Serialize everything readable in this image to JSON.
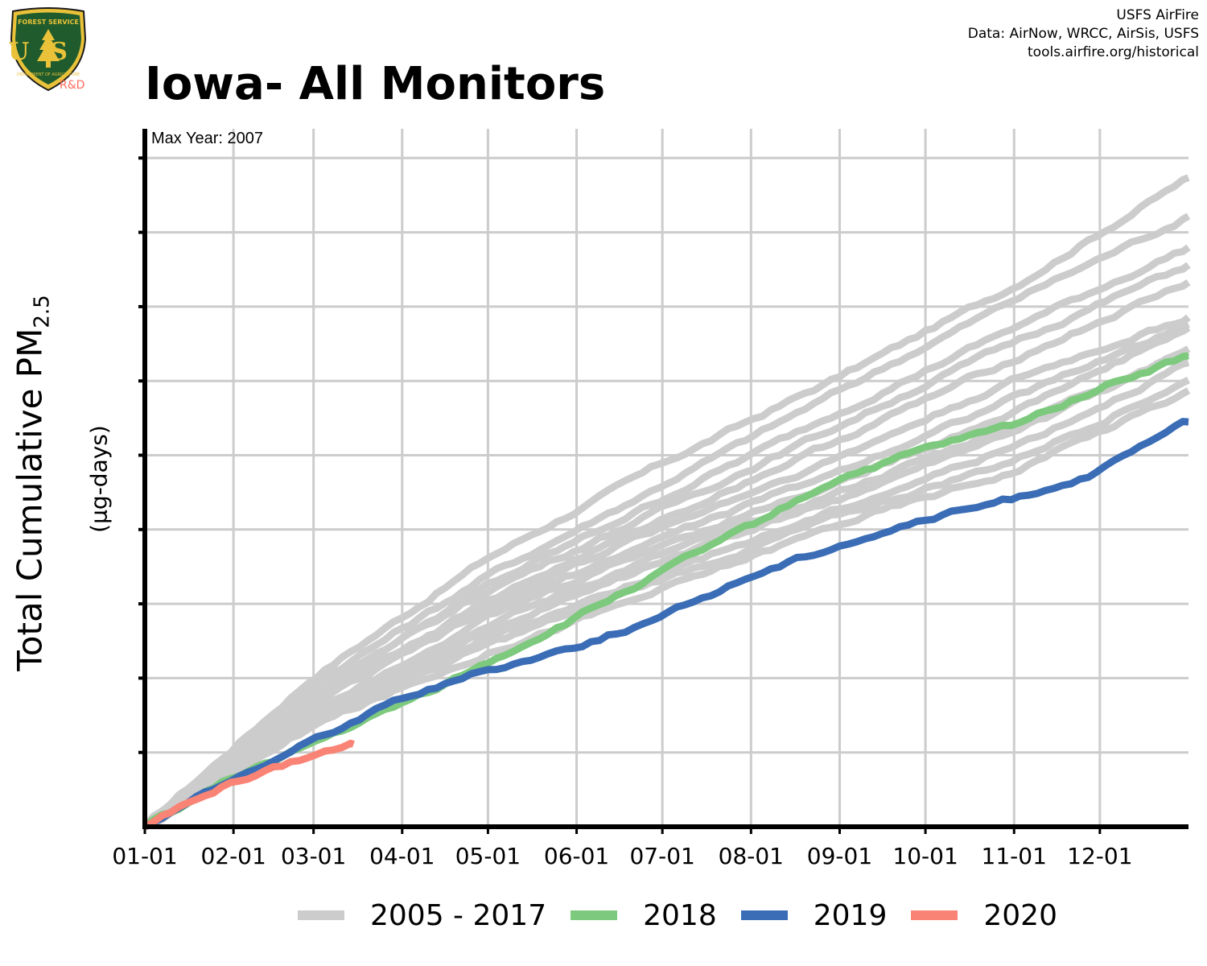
{
  "header": {
    "title": "Iowa- All Monitors",
    "credit_lines": [
      "USFS AirFire",
      "Data: AirNow, WRCC, AirSis, USFS",
      "tools.airfire.org/historical"
    ]
  },
  "logo": {
    "top_text": "FOREST SERVICE",
    "letters": "US",
    "bottom_text": "DEPARTMENT OF AGRICULTURE",
    "rd_text": "R&D",
    "colors": {
      "shield": "#1f5b2c",
      "gold": "#e9c23a",
      "rd": "#ff6b5b"
    }
  },
  "chart_data": {
    "type": "line",
    "ylabel_main": "Total Cumulative PM",
    "ylabel_sub": "2.5",
    "ylabel_unit": "(µg-days)",
    "annotation": "Max Year: 2007",
    "x_ticks": [
      "01-01",
      "02-01",
      "03-01",
      "04-01",
      "05-01",
      "06-01",
      "07-01",
      "08-01",
      "09-01",
      "10-01",
      "11-01",
      "12-01"
    ],
    "x_tick_days": [
      1,
      32,
      60,
      91,
      121,
      152,
      182,
      213,
      244,
      274,
      305,
      335
    ],
    "xlim_days": [
      1,
      366
    ],
    "y_tick_labels_shown": false,
    "ylim_fraction": [
      0,
      1
    ],
    "grid": true,
    "legend": {
      "placement": "bottom"
    },
    "colors": {
      "2005 - 2017": "#cccccc",
      "2018": "#7dc97d",
      "2019": "#3a6db5",
      "2020": "#f98475"
    },
    "note": "Y axis has no tick labels; series values are fractions of the axis range.",
    "series": [
      {
        "name": "2005 - 2017",
        "group": "historical",
        "x": [
          1,
          60,
          121,
          182,
          244,
          305,
          366
        ],
        "values": [
          0,
          0.215,
          0.385,
          0.52,
          0.645,
          0.775,
          0.93
        ]
      },
      {
        "name": "2005 - 2017",
        "group": "historical",
        "x": [
          1,
          60,
          121,
          182,
          244,
          305,
          366
        ],
        "values": [
          0,
          0.205,
          0.36,
          0.49,
          0.625,
          0.755,
          0.875
        ]
      },
      {
        "name": "2005 - 2017",
        "group": "historical",
        "x": [
          1,
          60,
          121,
          182,
          244,
          305,
          366
        ],
        "values": [
          0,
          0.195,
          0.345,
          0.47,
          0.595,
          0.715,
          0.83
        ]
      },
      {
        "name": "2005 - 2017",
        "group": "historical",
        "x": [
          1,
          60,
          121,
          182,
          244,
          305,
          366
        ],
        "values": [
          0,
          0.19,
          0.34,
          0.455,
          0.575,
          0.695,
          0.805
        ]
      },
      {
        "name": "2005 - 2017",
        "group": "historical",
        "x": [
          1,
          60,
          121,
          182,
          244,
          305,
          366
        ],
        "values": [
          0,
          0.185,
          0.325,
          0.44,
          0.555,
          0.67,
          0.78
        ]
      },
      {
        "name": "2005 - 2017",
        "group": "historical",
        "x": [
          1,
          60,
          121,
          182,
          244,
          305,
          366
        ],
        "values": [
          0,
          0.18,
          0.32,
          0.43,
          0.53,
          0.64,
          0.73
        ]
      },
      {
        "name": "2005 - 2017",
        "group": "historical",
        "x": [
          1,
          60,
          121,
          182,
          244,
          305,
          366
        ],
        "values": [
          0,
          0.175,
          0.31,
          0.415,
          0.51,
          0.615,
          0.72
        ]
      },
      {
        "name": "2005 - 2017",
        "group": "historical",
        "x": [
          1,
          60,
          121,
          182,
          244,
          305,
          366
        ],
        "values": [
          0,
          0.17,
          0.3,
          0.405,
          0.495,
          0.595,
          0.715
        ]
      },
      {
        "name": "2005 - 2017",
        "group": "historical",
        "x": [
          1,
          60,
          121,
          182,
          244,
          305,
          366
        ],
        "values": [
          0,
          0.165,
          0.29,
          0.39,
          0.48,
          0.575,
          0.685
        ]
      },
      {
        "name": "2005 - 2017",
        "group": "historical",
        "x": [
          1,
          60,
          121,
          182,
          244,
          305,
          366
        ],
        "values": [
          0,
          0.16,
          0.28,
          0.38,
          0.47,
          0.565,
          0.68
        ]
      },
      {
        "name": "2005 - 2017",
        "group": "historical",
        "x": [
          1,
          60,
          121,
          182,
          244,
          305,
          366
        ],
        "values": [
          0,
          0.155,
          0.27,
          0.365,
          0.455,
          0.545,
          0.665
        ]
      },
      {
        "name": "2005 - 2017",
        "group": "historical",
        "x": [
          1,
          60,
          121,
          182,
          244,
          305,
          366
        ],
        "values": [
          0,
          0.15,
          0.26,
          0.355,
          0.445,
          0.525,
          0.64
        ]
      },
      {
        "name": "2005 - 2017",
        "group": "historical",
        "x": [
          1,
          60,
          121,
          182,
          244,
          305,
          366
        ],
        "values": [
          0,
          0.145,
          0.25,
          0.34,
          0.435,
          0.51,
          0.625
        ]
      },
      {
        "name": "2018",
        "group": "highlight",
        "x": [
          1,
          32,
          60,
          91,
          121,
          152,
          182,
          213,
          244,
          274,
          305,
          335,
          366
        ],
        "values": [
          0,
          0.07,
          0.12,
          0.175,
          0.235,
          0.3,
          0.365,
          0.43,
          0.5,
          0.54,
          0.575,
          0.63,
          0.675
        ]
      },
      {
        "name": "2019",
        "group": "highlight",
        "x": [
          1,
          32,
          60,
          91,
          121,
          152,
          182,
          213,
          244,
          274,
          305,
          335,
          366
        ],
        "values": [
          0,
          0.068,
          0.125,
          0.185,
          0.225,
          0.26,
          0.3,
          0.36,
          0.405,
          0.44,
          0.47,
          0.51,
          0.58
        ]
      },
      {
        "name": "2020",
        "group": "highlight",
        "x": [
          1,
          32,
          60,
          74
        ],
        "values": [
          0,
          0.065,
          0.1,
          0.118
        ]
      }
    ]
  },
  "legend_items": [
    {
      "label": "2005 - 2017",
      "color": "#cccccc"
    },
    {
      "label": "2018",
      "color": "#7dc97d"
    },
    {
      "label": "2019",
      "color": "#3a6db5"
    },
    {
      "label": "2020",
      "color": "#f98475"
    }
  ]
}
